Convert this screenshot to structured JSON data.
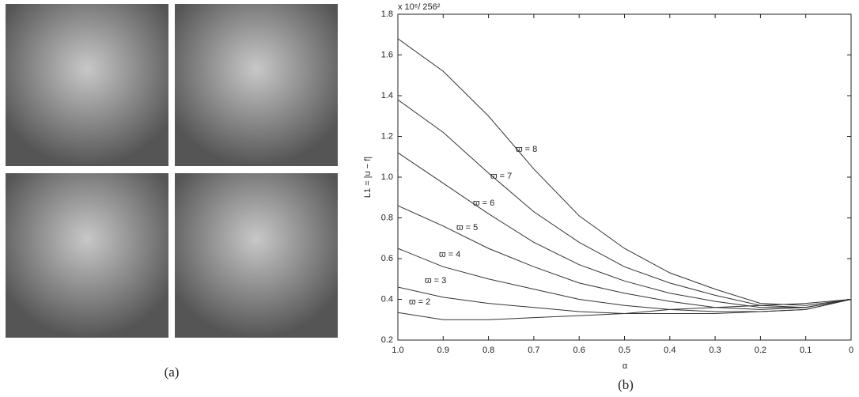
{
  "figure": {
    "captions": [
      "(a)",
      "(b)"
    ]
  },
  "chart_data": {
    "type": "line",
    "axis_multiplier": "x 10⁶/ 256²",
    "xlabel": "α",
    "ylabel": "L1 = |u − f|",
    "x": [
      1,
      0.9,
      0.8,
      0.7,
      0.6,
      0.5,
      0.4,
      0.3,
      0.2,
      0.1,
      0
    ],
    "xlim": [
      1,
      0
    ],
    "xticks": [
      {
        "value": 1,
        "label": "1.0"
      },
      0.9,
      0.8,
      0.7,
      0.6,
      0.5,
      0.4,
      0.3,
      0.2,
      0.1,
      0
    ],
    "ylim": [
      0.2,
      1.8
    ],
    "yticks": [
      0.2,
      0.4,
      0.6,
      0.8,
      {
        "value": 1,
        "label": "1.0"
      },
      1.2,
      1.4,
      1.6,
      1.8
    ],
    "series": [
      {
        "name": "ϖ = 8",
        "color": "#333333",
        "values": [
          1.68,
          1.52,
          1.3,
          1.04,
          0.81,
          0.65,
          0.53,
          0.45,
          0.38,
          0.37,
          0.4
        ]
      },
      {
        "name": "ϖ = 7",
        "color": "#333333",
        "values": [
          1.38,
          1.22,
          1.02,
          0.83,
          0.68,
          0.56,
          0.48,
          0.42,
          0.37,
          0.36,
          0.4
        ]
      },
      {
        "name": "ϖ = 6",
        "color": "#333333",
        "values": [
          1.12,
          0.97,
          0.82,
          0.68,
          0.57,
          0.49,
          0.43,
          0.39,
          0.36,
          0.36,
          0.4
        ]
      },
      {
        "name": "ϖ = 5",
        "color": "#333333",
        "values": [
          0.86,
          0.76,
          0.65,
          0.56,
          0.48,
          0.43,
          0.39,
          0.36,
          0.35,
          0.36,
          0.4
        ]
      },
      {
        "name": "ϖ = 4",
        "color": "#333333",
        "values": [
          0.65,
          0.56,
          0.5,
          0.45,
          0.4,
          0.37,
          0.35,
          0.34,
          0.34,
          0.35,
          0.4
        ]
      },
      {
        "name": "ϖ = 3",
        "color": "#333333",
        "values": [
          0.46,
          0.41,
          0.38,
          0.36,
          0.34,
          0.33,
          0.33,
          0.33,
          0.34,
          0.35,
          0.4
        ]
      },
      {
        "name": "ϖ = 2",
        "color": "#333333",
        "values": [
          0.335,
          0.3,
          0.3,
          0.31,
          0.32,
          0.33,
          0.35,
          0.36,
          0.37,
          0.38,
          0.4
        ]
      }
    ]
  }
}
